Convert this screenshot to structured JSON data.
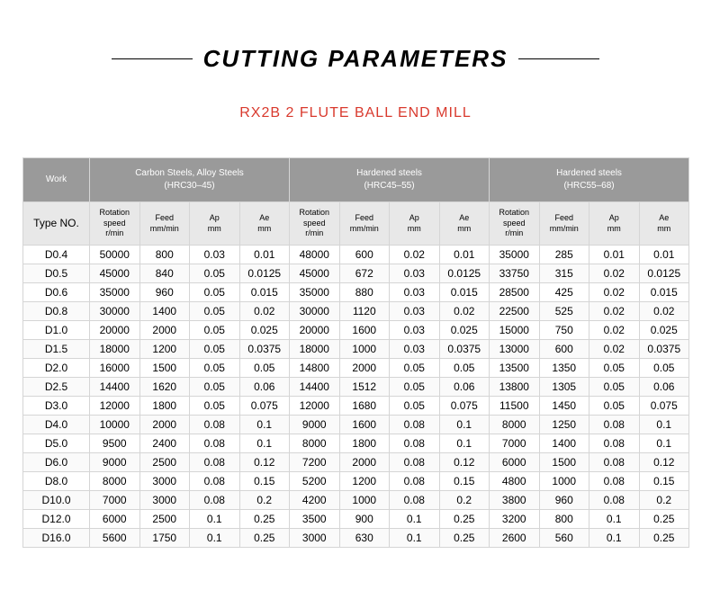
{
  "title": "CUTTING PARAMETERS",
  "subtitle": "RX2B 2 FLUTE BALL END MILL",
  "group_header_work": "Work",
  "groups": [
    {
      "label": "Carbon Steels, Alloy Steels",
      "sub": "(HRC30–45)"
    },
    {
      "label": "Hardened steels",
      "sub": "(HRC45–55)"
    },
    {
      "label": "Hardened steels",
      "sub": "(HRC55–68)"
    }
  ],
  "type_no_label": "Type NO.",
  "col_headers": [
    {
      "main": "Rotation speed",
      "sub": "r/min"
    },
    {
      "main": "Feed",
      "sub": "mm/min"
    },
    {
      "main": "Ap",
      "sub": "mm"
    },
    {
      "main": "Ae",
      "sub": "mm"
    }
  ],
  "rows": [
    {
      "type": "D0.4",
      "v": [
        "50000",
        "800",
        "0.03",
        "0.01",
        "48000",
        "600",
        "0.02",
        "0.01",
        "35000",
        "285",
        "0.01",
        "0.01"
      ]
    },
    {
      "type": "D0.5",
      "v": [
        "45000",
        "840",
        "0.05",
        "0.0125",
        "45000",
        "672",
        "0.03",
        "0.0125",
        "33750",
        "315",
        "0.02",
        "0.0125"
      ]
    },
    {
      "type": "D0.6",
      "v": [
        "35000",
        "960",
        "0.05",
        "0.015",
        "35000",
        "880",
        "0.03",
        "0.015",
        "28500",
        "425",
        "0.02",
        "0.015"
      ]
    },
    {
      "type": "D0.8",
      "v": [
        "30000",
        "1400",
        "0.05",
        "0.02",
        "30000",
        "1120",
        "0.03",
        "0.02",
        "22500",
        "525",
        "0.02",
        "0.02"
      ]
    },
    {
      "type": "D1.0",
      "v": [
        "20000",
        "2000",
        "0.05",
        "0.025",
        "20000",
        "1600",
        "0.03",
        "0.025",
        "15000",
        "750",
        "0.02",
        "0.025"
      ]
    },
    {
      "type": "D1.5",
      "v": [
        "18000",
        "1200",
        "0.05",
        "0.0375",
        "18000",
        "1000",
        "0.03",
        "0.0375",
        "13000",
        "600",
        "0.02",
        "0.0375"
      ]
    },
    {
      "type": "D2.0",
      "v": [
        "16000",
        "1500",
        "0.05",
        "0.05",
        "14800",
        "2000",
        "0.05",
        "0.05",
        "13500",
        "1350",
        "0.05",
        "0.05"
      ]
    },
    {
      "type": "D2.5",
      "v": [
        "14400",
        "1620",
        "0.05",
        "0.06",
        "14400",
        "1512",
        "0.05",
        "0.06",
        "13800",
        "1305",
        "0.05",
        "0.06"
      ]
    },
    {
      "type": "D3.0",
      "v": [
        "12000",
        "1800",
        "0.05",
        "0.075",
        "12000",
        "1680",
        "0.05",
        "0.075",
        "11500",
        "1450",
        "0.05",
        "0.075"
      ]
    },
    {
      "type": "D4.0",
      "v": [
        "10000",
        "2000",
        "0.08",
        "0.1",
        "9000",
        "1600",
        "0.08",
        "0.1",
        "8000",
        "1250",
        "0.08",
        "0.1"
      ]
    },
    {
      "type": "D5.0",
      "v": [
        "9500",
        "2400",
        "0.08",
        "0.1",
        "8000",
        "1800",
        "0.08",
        "0.1",
        "7000",
        "1400",
        "0.08",
        "0.1"
      ]
    },
    {
      "type": "D6.0",
      "v": [
        "9000",
        "2500",
        "0.08",
        "0.12",
        "7200",
        "2000",
        "0.08",
        "0.12",
        "6000",
        "1500",
        "0.08",
        "0.12"
      ]
    },
    {
      "type": "D8.0",
      "v": [
        "8000",
        "3000",
        "0.08",
        "0.15",
        "5200",
        "1200",
        "0.08",
        "0.15",
        "4800",
        "1000",
        "0.08",
        "0.15"
      ]
    },
    {
      "type": "D10.0",
      "v": [
        "7000",
        "3000",
        "0.08",
        "0.2",
        "4200",
        "1000",
        "0.08",
        "0.2",
        "3800",
        "960",
        "0.08",
        "0.2"
      ]
    },
    {
      "type": "D12.0",
      "v": [
        "6000",
        "2500",
        "0.1",
        "0.25",
        "3500",
        "900",
        "0.1",
        "0.25",
        "3200",
        "800",
        "0.1",
        "0.25"
      ]
    },
    {
      "type": "D16.0",
      "v": [
        "5600",
        "1750",
        "0.1",
        "0.25",
        "3000",
        "630",
        "0.1",
        "0.25",
        "2600",
        "560",
        "0.1",
        "0.25"
      ]
    }
  ],
  "colors": {
    "title": "#000000",
    "subtitle": "#d93a2e",
    "group_bg": "#9a9a9a",
    "group_fg": "#ffffff",
    "hdr_bg": "#e8e8e8",
    "border": "#d5d5d5"
  }
}
